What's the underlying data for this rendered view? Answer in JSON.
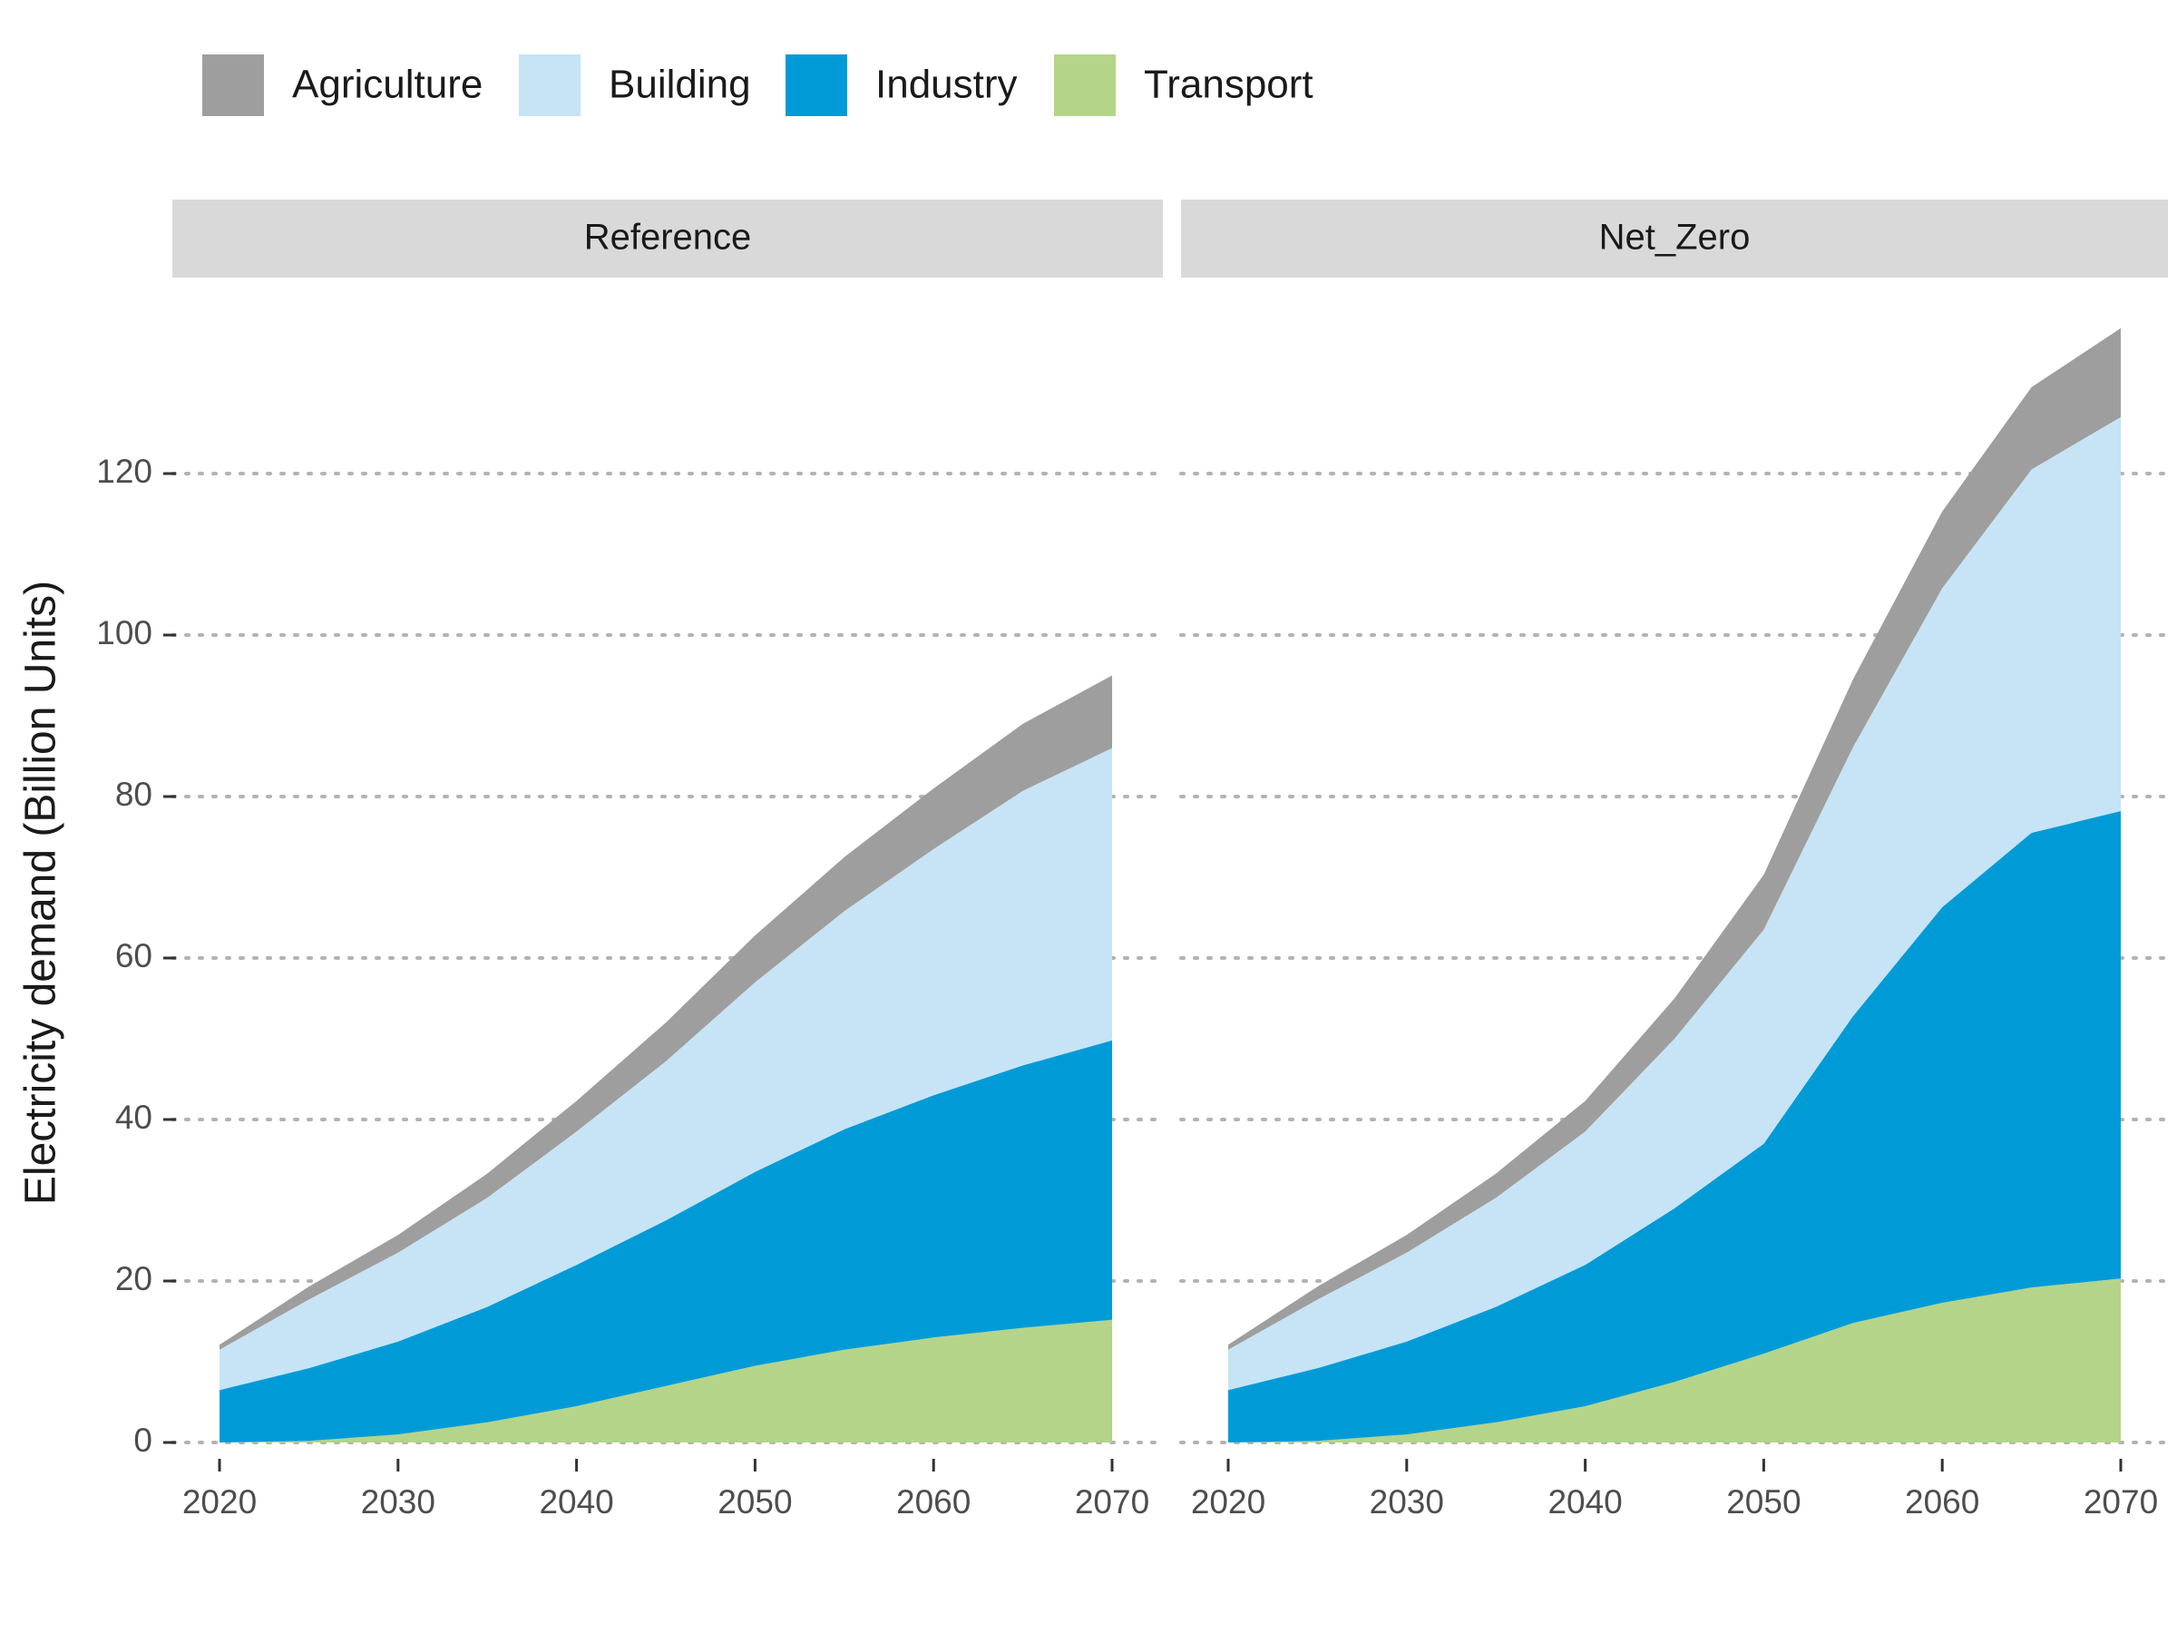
{
  "chart_data": {
    "type": "area",
    "stacked": true,
    "ylabel": "Electricity demand (Billion Units)",
    "xlabel": "",
    "x": [
      2020,
      2025,
      2030,
      2035,
      2040,
      2045,
      2050,
      2055,
      2060,
      2065,
      2070
    ],
    "xticks": [
      "2020",
      "2030",
      "2040",
      "2050",
      "2060",
      "2070"
    ],
    "yticks": [
      "0",
      "20",
      "40",
      "60",
      "80",
      "100",
      "120"
    ],
    "ylim": [
      0,
      140
    ],
    "grid": "horizontal dotted",
    "legend": {
      "position": "top-left",
      "entries": [
        "Agriculture",
        "Building",
        "Industry",
        "Transport"
      ]
    },
    "stack_order_bottom_to_top": [
      "Transport",
      "Industry",
      "Building",
      "Agriculture"
    ],
    "colors": {
      "Agriculture": "#9e9e9e",
      "Building": "#c6e4f5",
      "Industry": "#009bd7",
      "Transport": "#b4d48a"
    },
    "panels": [
      {
        "title": "Reference",
        "series": [
          {
            "name": "Transport",
            "values": [
              0,
              0.2,
              1,
              2.5,
              4.5,
              7,
              9.5,
              11.5,
              13,
              14.2,
              15.2
            ]
          },
          {
            "name": "Industry",
            "values": [
              6.5,
              9,
              11.5,
              14.3,
              17.5,
              20.5,
              24,
              27.3,
              30,
              32.5,
              34.6
            ]
          },
          {
            "name": "Building",
            "values": [
              5,
              8.5,
              11,
              13.5,
              16.5,
              19.7,
              23.5,
              27,
              30.5,
              34,
              36.2
            ]
          },
          {
            "name": "Agriculture",
            "values": [
              0.6,
              1.6,
              2.2,
              3,
              3.8,
              4.8,
              5.8,
              6.7,
              7.5,
              8.3,
              9
            ]
          }
        ]
      },
      {
        "title": "Net_Zero",
        "series": [
          {
            "name": "Transport",
            "values": [
              0,
              0.2,
              1,
              2.5,
              4.5,
              7.5,
              11,
              14.8,
              17.3,
              19.2,
              20.3
            ]
          },
          {
            "name": "Industry",
            "values": [
              6.5,
              9,
              11.5,
              14.3,
              17.5,
              21.5,
              26,
              38,
              49,
              56.3,
              57.9
            ]
          },
          {
            "name": "Building",
            "values": [
              5,
              8.5,
              11,
              13.5,
              16.5,
              21,
              26.5,
              33.3,
              39.5,
              45,
              48.8
            ]
          },
          {
            "name": "Agriculture",
            "values": [
              0.6,
              1.6,
              2.2,
              3,
              3.8,
              5,
              6.8,
              8.4,
              9.5,
              10.2,
              11
            ]
          }
        ]
      }
    ]
  }
}
